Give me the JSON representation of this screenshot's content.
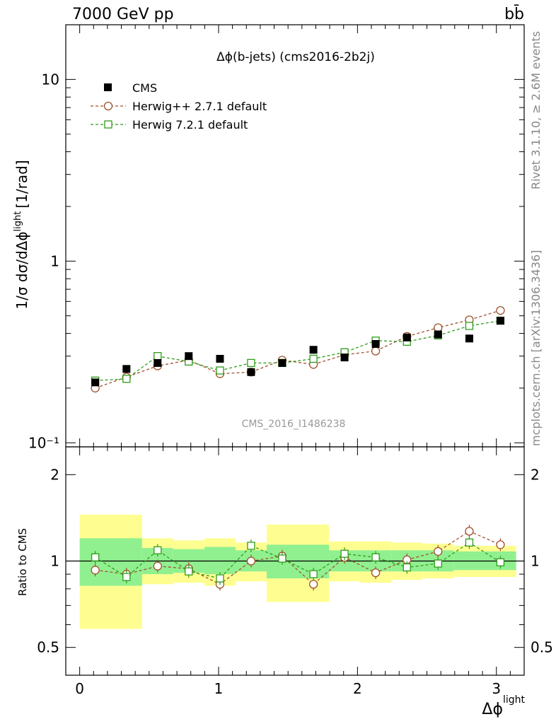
{
  "header": {
    "left": "7000 GeV pp",
    "right": "bb̄"
  },
  "side_texts": {
    "rivet": "Rivet 3.1.10, ≥ 2.6M events",
    "mcplots": "mcplots.cern.ch [arXiv:1306.3436]"
  },
  "watermark": "CMS_2016_I1486238",
  "chart_data": [
    {
      "type": "scatter",
      "title": "Δϕ(b-jets) (cms2016-2b2j)",
      "ylabel": "1/σ dσ/dΔϕlight [1/rad]",
      "ylabel_parts": {
        "main": "1/σ dσ/dΔϕ",
        "sup": "light",
        "unit": "[1/rad]"
      },
      "xlabel": "Δϕlight",
      "xlabel_parts": {
        "main": "Δϕ",
        "sup": "light"
      },
      "yscale": "log",
      "xlim": [
        -0.1,
        3.2
      ],
      "ylim": [
        0.095,
        20
      ],
      "ytick_labels": [
        "10⁻¹",
        "1",
        "10"
      ],
      "ytick_values": [
        0.1,
        1,
        10
      ],
      "xtick_labels": [
        "0",
        "1",
        "2",
        "3"
      ],
      "xtick_values": [
        0,
        1,
        2,
        3
      ],
      "bin_edges": [
        0,
        0.224,
        0.449,
        0.673,
        0.898,
        1.122,
        1.346,
        1.571,
        1.795,
        2.019,
        2.244,
        2.468,
        2.692,
        2.917,
        3.142
      ],
      "x": [
        0.112,
        0.337,
        0.561,
        0.785,
        1.01,
        1.234,
        1.458,
        1.683,
        1.907,
        2.131,
        2.356,
        2.58,
        2.805,
        3.029
      ],
      "legend_position": "top-left",
      "series": [
        {
          "name": "CMS",
          "marker": "filled-square",
          "color": "#000000",
          "values": [
            0.215,
            0.255,
            0.275,
            0.3,
            0.29,
            0.245,
            0.275,
            0.325,
            0.295,
            0.35,
            0.38,
            0.395,
            0.375,
            0.47
          ]
        },
        {
          "name": "Herwig++ 2.7.1 default",
          "marker": "open-circle",
          "color": "#a0522d",
          "values": [
            0.2,
            0.23,
            0.265,
            0.285,
            0.24,
            0.245,
            0.285,
            0.27,
            0.305,
            0.32,
            0.385,
            0.43,
            0.475,
            0.535
          ]
        },
        {
          "name": "Herwig 7.2.1 default",
          "marker": "open-square",
          "color": "#2e9c1a",
          "values": [
            0.22,
            0.225,
            0.3,
            0.28,
            0.25,
            0.275,
            0.275,
            0.29,
            0.315,
            0.365,
            0.36,
            0.39,
            0.44,
            0.47
          ]
        }
      ]
    },
    {
      "type": "scatter",
      "ylabel": "Ratio to CMS",
      "yscale": "log",
      "ylim": [
        0.4,
        2.5
      ],
      "ytick_labels": [
        "0.5",
        "1",
        "2"
      ],
      "ytick_values": [
        0.5,
        1,
        2
      ],
      "reference_line": 1,
      "band_colors": {
        "inner": "#90f090",
        "outer": "#fefe90"
      },
      "bands": [
        {
          "x0": 0,
          "x1": 0.449,
          "inner": [
            0.82,
            1.2
          ],
          "outer": [
            0.58,
            1.45
          ]
        },
        {
          "x0": 0.449,
          "x1": 0.673,
          "inner": [
            0.9,
            1.11
          ],
          "outer": [
            0.83,
            1.2
          ]
        },
        {
          "x0": 0.673,
          "x1": 0.898,
          "inner": [
            0.91,
            1.1
          ],
          "outer": [
            0.84,
            1.18
          ]
        },
        {
          "x0": 0.898,
          "x1": 1.122,
          "inner": [
            0.9,
            1.12
          ],
          "outer": [
            0.82,
            1.2
          ]
        },
        {
          "x0": 1.122,
          "x1": 1.346,
          "inner": [
            0.92,
            1.09
          ],
          "outer": [
            0.85,
            1.16
          ]
        },
        {
          "x0": 1.346,
          "x1": 1.795,
          "inner": [
            0.87,
            1.14
          ],
          "outer": [
            0.72,
            1.34
          ]
        },
        {
          "x0": 1.795,
          "x1": 2.019,
          "inner": [
            0.92,
            1.09
          ],
          "outer": [
            0.85,
            1.17
          ]
        },
        {
          "x0": 2.019,
          "x1": 2.244,
          "inner": [
            0.92,
            1.09
          ],
          "outer": [
            0.84,
            1.17
          ]
        },
        {
          "x0": 2.244,
          "x1": 2.468,
          "inner": [
            0.92,
            1.09
          ],
          "outer": [
            0.86,
            1.16
          ]
        },
        {
          "x0": 2.468,
          "x1": 2.692,
          "inner": [
            0.92,
            1.09
          ],
          "outer": [
            0.87,
            1.15
          ]
        },
        {
          "x0": 2.692,
          "x1": 3.142,
          "inner": [
            0.93,
            1.08
          ],
          "outer": [
            0.88,
            1.13
          ]
        }
      ],
      "series": [
        {
          "name": "Herwig++ 2.7.1 default",
          "marker": "open-circle",
          "color": "#a0522d",
          "values": [
            0.93,
            0.9,
            0.96,
            0.94,
            0.83,
            1.0,
            1.04,
            0.83,
            1.03,
            0.91,
            1.01,
            1.08,
            1.27,
            1.14
          ]
        },
        {
          "name": "Herwig 7.2.1 default",
          "marker": "open-square",
          "color": "#2e9c1a",
          "values": [
            1.03,
            0.88,
            1.09,
            0.92,
            0.87,
            1.13,
            1.02,
            0.9,
            1.06,
            1.03,
            0.95,
            0.98,
            1.16,
            0.99
          ]
        }
      ]
    }
  ]
}
